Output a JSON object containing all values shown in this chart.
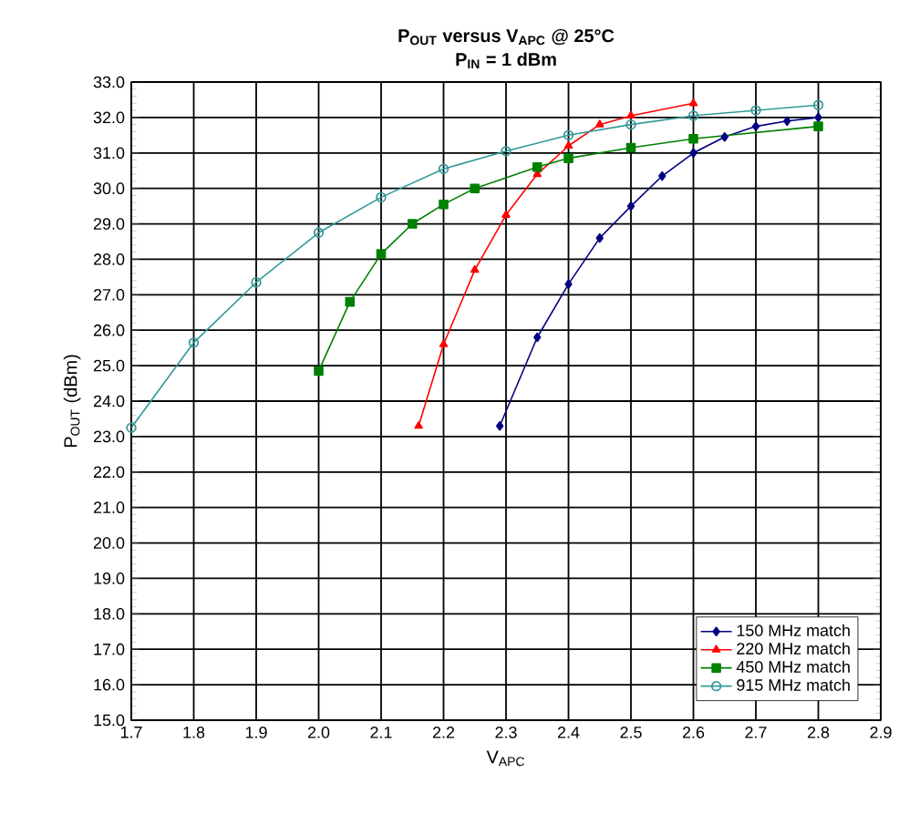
{
  "chart_data": {
    "type": "line",
    "title": "P$_{OUT}$ versus V$_{APC}$ @ 25°C",
    "subtitle": "P$_{IN}$ = 1 dBm",
    "xlabel": "V$_{APC}$",
    "ylabel": "P$_{OUT}$ (dBm)",
    "xlim": [
      1.7,
      2.9
    ],
    "ylim": [
      15,
      33
    ],
    "xticks": [
      1.7,
      1.8,
      1.9,
      {
        "value": 2.0,
        "label": "2.0"
      },
      2.1,
      2.2,
      2.3,
      2.4,
      2.5,
      2.6,
      2.7,
      2.8,
      2.9
    ],
    "yticks": [
      {
        "value": 15,
        "label": "15.0"
      },
      {
        "value": 16,
        "label": "16.0"
      },
      {
        "value": 17,
        "label": "17.0"
      },
      {
        "value": 18,
        "label": "18.0"
      },
      {
        "value": 19,
        "label": "19.0"
      },
      {
        "value": 20,
        "label": "20.0"
      },
      {
        "value": 21,
        "label": "21.0"
      },
      {
        "value": 22,
        "label": "22.0"
      },
      {
        "value": 23,
        "label": "23.0"
      },
      {
        "value": 24,
        "label": "24.0"
      },
      {
        "value": 25,
        "label": "25.0"
      },
      {
        "value": 26,
        "label": "26.0"
      },
      {
        "value": 27,
        "label": "27.0"
      },
      {
        "value": 28,
        "label": "28.0"
      },
      {
        "value": 29,
        "label": "29.0"
      },
      {
        "value": 30,
        "label": "30.0"
      },
      {
        "value": 31,
        "label": "31.0"
      },
      {
        "value": 32,
        "label": "32.0"
      },
      {
        "value": 33,
        "label": "33.0"
      }
    ],
    "grid": true,
    "legend": "bottom right",
    "line_style": "solid",
    "series": [
      {
        "name": "150 MHz match",
        "color": "#000080",
        "marker": "diamond",
        "x": [
          2.29,
          2.35,
          2.4,
          2.45,
          2.5,
          2.55,
          2.6,
          2.65,
          2.7,
          2.75,
          2.8
        ],
        "values": [
          23.3,
          25.8,
          27.3,
          28.6,
          29.5,
          30.35,
          31.0,
          31.45,
          31.75,
          31.9,
          32.0
        ]
      },
      {
        "name": "220 MHz match",
        "color": "#ff0000",
        "marker": "triangle",
        "x": [
          2.16,
          2.2,
          2.25,
          2.3,
          2.35,
          2.4,
          2.45,
          2.5,
          2.6
        ],
        "values": [
          23.3,
          25.6,
          27.7,
          29.25,
          30.4,
          31.2,
          31.8,
          32.05,
          32.4
        ]
      },
      {
        "name": "450 MHz match",
        "color": "#008000",
        "marker": "square",
        "x": [
          2.0,
          2.05,
          2.1,
          2.15,
          2.2,
          2.25,
          2.35,
          2.4,
          2.5,
          2.6,
          2.8
        ],
        "values": [
          24.85,
          26.8,
          28.15,
          29.0,
          29.55,
          30.0,
          30.6,
          30.85,
          31.15,
          31.4,
          31.75
        ]
      },
      {
        "name": "915 MHz match",
        "color": "#339999",
        "marker": "circle",
        "x": [
          1.7,
          1.8,
          1.9,
          2.0,
          2.1,
          2.2,
          2.3,
          2.4,
          2.5,
          2.6,
          2.7,
          2.8
        ],
        "values": [
          23.25,
          25.65,
          27.35,
          28.75,
          29.75,
          30.55,
          31.05,
          31.5,
          31.8,
          32.05,
          32.2,
          32.35
        ]
      }
    ]
  }
}
